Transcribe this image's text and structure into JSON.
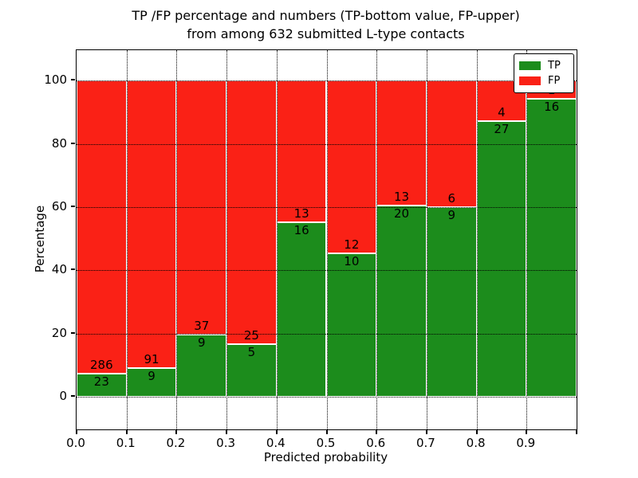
{
  "title": {
    "line1": "TP /FP percentage and numbers (TP-bottom value, FP-upper)",
    "line2": "from among 632 submitted L-type contacts"
  },
  "axes": {
    "xlabel": "Predicted probability",
    "ylabel": "Percentage",
    "xtick_labels": [
      "0.0",
      "0.1",
      "0.2",
      "0.3",
      "0.4",
      "0.5",
      "0.6",
      "0.7",
      "0.8",
      "0.9"
    ],
    "ytick_labels": [
      "0",
      "20",
      "40",
      "60",
      "80",
      "100"
    ]
  },
  "legend": {
    "items": [
      {
        "label": "TP",
        "color": "#1c8c1c"
      },
      {
        "label": "FP",
        "color": "#fa2116"
      }
    ]
  },
  "chart_data": {
    "type": "bar",
    "stacked": true,
    "normalized_to_percent": true,
    "title": "TP /FP percentage and numbers (TP-bottom value, FP-upper) from among 632 submitted L-type contacts",
    "xlabel": "Predicted probability",
    "ylabel": "Percentage",
    "total_submitted": 632,
    "bins": [
      [
        0.0,
        0.1
      ],
      [
        0.1,
        0.2
      ],
      [
        0.2,
        0.3
      ],
      [
        0.3,
        0.4
      ],
      [
        0.4,
        0.5
      ],
      [
        0.5,
        0.6
      ],
      [
        0.6,
        0.7
      ],
      [
        0.7,
        0.8
      ],
      [
        0.8,
        0.9
      ],
      [
        0.9,
        1.0
      ]
    ],
    "series": [
      {
        "name": "TP",
        "color": "#1c8c1c",
        "counts": [
          23,
          9,
          9,
          5,
          16,
          10,
          20,
          9,
          27,
          16
        ]
      },
      {
        "name": "FP",
        "color": "#fa2116",
        "counts": [
          286,
          91,
          37,
          25,
          13,
          12,
          13,
          6,
          4,
          1
        ]
      }
    ],
    "tp_percent_of_bin": [
      7.44,
      9.0,
      19.57,
      16.67,
      55.17,
      45.45,
      60.61,
      60.0,
      87.1,
      94.12
    ],
    "xlim": [
      0.0,
      1.0
    ],
    "ylim": [
      -10.3,
      109.6
    ],
    "xticks": [
      0.0,
      0.1,
      0.2,
      0.3,
      0.4,
      0.5,
      0.6,
      0.7,
      0.8,
      0.9
    ],
    "yticks": [
      0,
      20,
      40,
      60,
      80,
      100
    ],
    "grid": true,
    "grid_style": "dotted",
    "legend_position": "upper right",
    "bar_edge_color": "#ffffff"
  }
}
